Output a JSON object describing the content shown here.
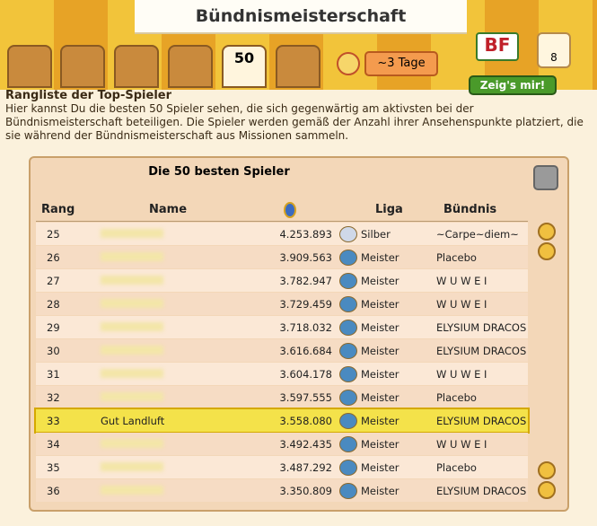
{
  "header": {
    "title": "Bündnismeisterschaft"
  },
  "tabs": {
    "active_label": "50"
  },
  "timer": "~3 Tage",
  "badge": {
    "logo": "BF",
    "count": "8",
    "button": "Zeig's mir!"
  },
  "intro": {
    "heading": "Rangliste der Top-Spieler",
    "text": "Hier kannst Du die besten 50 Spieler sehen, die sich gegenwärtig am aktivsten bei der Bündnismeisterschaft beteiligen. Die Spieler werden gemäß der Anzahl ihrer Ansehenspunkte platziert, die sie während der Bündnismeisterschaft aus Missionen sammeln."
  },
  "panel": {
    "title": "Die 50 besten Spieler"
  },
  "table": {
    "columns": [
      "Rang",
      "Name",
      "Liga",
      "Bündnis"
    ],
    "rows": [
      [
        "25",
        null,
        "4.253.893",
        "Silber",
        "~Carpe~diem~"
      ],
      [
        "26",
        null,
        "3.909.563",
        "Meister",
        "Placebo"
      ],
      [
        "27",
        null,
        "3.782.947",
        "Meister",
        "W U W E I"
      ],
      [
        "28",
        null,
        "3.729.459",
        "Meister",
        "W U W E I"
      ],
      [
        "29",
        null,
        "3.718.032",
        "Meister",
        "ELYSIUM DRACOS"
      ],
      [
        "30",
        null,
        "3.616.684",
        "Meister",
        "ELYSIUM DRACOS"
      ],
      [
        "31",
        null,
        "3.604.178",
        "Meister",
        "W U W E I"
      ],
      [
        "32",
        null,
        "3.597.555",
        "Meister",
        "Placebo"
      ],
      [
        "33",
        "Gut Landluft",
        "3.558.080",
        "Meister",
        "ELYSIUM DRACOS"
      ],
      [
        "34",
        null,
        "3.492.435",
        "Meister",
        "W U W E I"
      ],
      [
        "35",
        null,
        "3.487.292",
        "Meister",
        "Placebo"
      ],
      [
        "36",
        null,
        "3.350.809",
        "Meister",
        "ELYSIUM DRACOS"
      ]
    ],
    "highlight_row": 8
  }
}
